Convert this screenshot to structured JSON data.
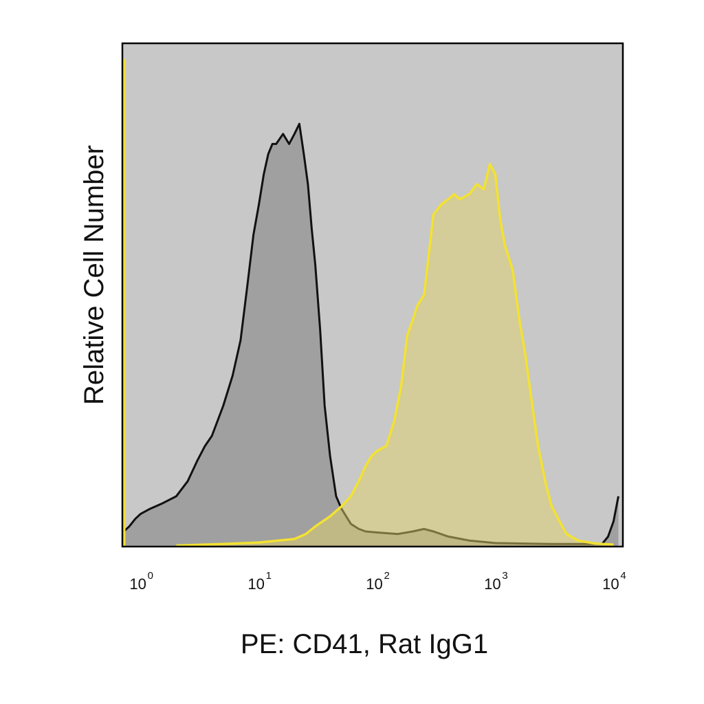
{
  "chart_data": {
    "type": "area",
    "title": "",
    "xlabel": "PE: CD41, Rat IgG1",
    "ylabel": "Relative Cell Number",
    "x_scale": "log",
    "xlim": [
      0.7,
      12000
    ],
    "ylim": [
      0,
      1.0
    ],
    "grid": false,
    "legend": "none",
    "x_ticks": [
      {
        "base": "10",
        "exp": "0",
        "value": 1
      },
      {
        "base": "10",
        "exp": "1",
        "value": 10
      },
      {
        "base": "10",
        "exp": "2",
        "value": 100
      },
      {
        "base": "10",
        "exp": "3",
        "value": 1000
      },
      {
        "base": "10",
        "exp": "4",
        "value": 10000
      }
    ],
    "colors": {
      "plot_background": "#c8c8c8",
      "frame": "#000000",
      "series_1_fill": "#a0a0a0",
      "series_1_line": "#111111",
      "series_2_fill": "#e0d06a",
      "series_2_fill_opacity": 0.5,
      "series_2_line": "#f3e231"
    },
    "series": [
      {
        "points": [
          [
            0.72,
            0.03
          ],
          [
            0.8,
            0.04
          ],
          [
            0.9,
            0.055
          ],
          [
            1.0,
            0.065
          ],
          [
            1.2,
            0.075
          ],
          [
            1.5,
            0.085
          ],
          [
            2.0,
            0.1
          ],
          [
            2.5,
            0.13
          ],
          [
            3.0,
            0.17
          ],
          [
            3.5,
            0.2
          ],
          [
            4.0,
            0.22
          ],
          [
            5.0,
            0.28
          ],
          [
            6.0,
            0.34
          ],
          [
            7.0,
            0.41
          ],
          [
            8.0,
            0.52
          ],
          [
            9.0,
            0.62
          ],
          [
            10.0,
            0.68
          ],
          [
            11.0,
            0.74
          ],
          [
            12.0,
            0.78
          ],
          [
            13.0,
            0.8
          ],
          [
            14.0,
            0.8
          ],
          [
            16.0,
            0.82
          ],
          [
            18.0,
            0.8
          ],
          [
            20.0,
            0.82
          ],
          [
            22.0,
            0.84
          ],
          [
            24.0,
            0.78
          ],
          [
            26.0,
            0.72
          ],
          [
            28.0,
            0.63
          ],
          [
            30.0,
            0.56
          ],
          [
            33.0,
            0.43
          ],
          [
            36.0,
            0.28
          ],
          [
            40.0,
            0.18
          ],
          [
            45.0,
            0.1
          ],
          [
            50.0,
            0.075
          ],
          [
            60.0,
            0.045
          ],
          [
            70.0,
            0.035
          ],
          [
            80.0,
            0.03
          ],
          [
            100.0,
            0.028
          ],
          [
            150.0,
            0.025
          ],
          [
            200.0,
            0.03
          ],
          [
            250.0,
            0.035
          ],
          [
            300.0,
            0.03
          ],
          [
            400.0,
            0.02
          ],
          [
            600.0,
            0.012
          ],
          [
            1000.0,
            0.007
          ],
          [
            3000.0,
            0.005
          ],
          [
            8000.0,
            0.005
          ],
          [
            9000.0,
            0.02
          ],
          [
            10000.0,
            0.05
          ],
          [
            11000.0,
            0.1
          ]
        ]
      },
      {
        "points": [
          [
            2.0,
            0.002
          ],
          [
            5.0,
            0.005
          ],
          [
            10.0,
            0.008
          ],
          [
            20.0,
            0.015
          ],
          [
            25.0,
            0.025
          ],
          [
            30.0,
            0.04
          ],
          [
            40.0,
            0.06
          ],
          [
            50.0,
            0.08
          ],
          [
            60.0,
            0.1
          ],
          [
            70.0,
            0.13
          ],
          [
            80.0,
            0.16
          ],
          [
            90.0,
            0.18
          ],
          [
            100.0,
            0.19
          ],
          [
            120.0,
            0.2
          ],
          [
            140.0,
            0.25
          ],
          [
            160.0,
            0.32
          ],
          [
            180.0,
            0.42
          ],
          [
            200.0,
            0.45
          ],
          [
            220.0,
            0.48
          ],
          [
            250.0,
            0.5
          ],
          [
            300.0,
            0.66
          ],
          [
            350.0,
            0.68
          ],
          [
            400.0,
            0.69
          ],
          [
            450.0,
            0.7
          ],
          [
            500.0,
            0.69
          ],
          [
            600.0,
            0.7
          ],
          [
            700.0,
            0.72
          ],
          [
            800.0,
            0.71
          ],
          [
            900.0,
            0.76
          ],
          [
            1000.0,
            0.74
          ],
          [
            1100.0,
            0.65
          ],
          [
            1200.0,
            0.6
          ],
          [
            1400.0,
            0.55
          ],
          [
            1600.0,
            0.45
          ],
          [
            1800.0,
            0.38
          ],
          [
            2000.0,
            0.3
          ],
          [
            2300.0,
            0.2
          ],
          [
            2700.0,
            0.12
          ],
          [
            3000.0,
            0.08
          ],
          [
            3500.0,
            0.05
          ],
          [
            4000.0,
            0.025
          ],
          [
            5000.0,
            0.012
          ],
          [
            7000.0,
            0.006
          ],
          [
            10000.0,
            0.004
          ]
        ]
      }
    ]
  }
}
